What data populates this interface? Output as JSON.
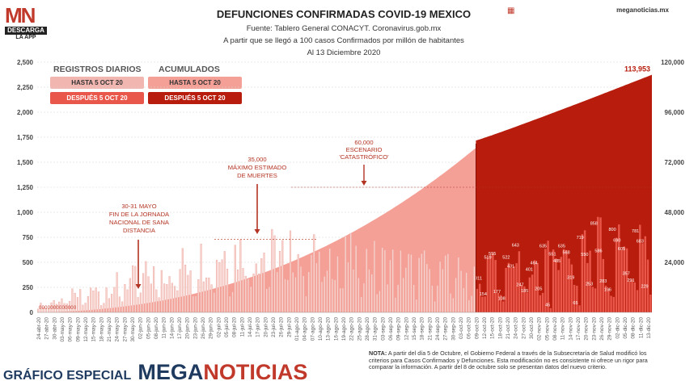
{
  "logo": {
    "mark": "MN",
    "download": "DESCARGA",
    "app": "LA APP"
  },
  "site": "meganoticias.mx",
  "header": {
    "title": "DEFUNCIONES CONFIRMADAS COVID-19 MEXICO",
    "source": "Fuente: Tablero General CONACYT. Coronavirus.gob.mx",
    "subtitle": "A partir que se llegó a 100 casos Confirmados por millón de habitantes",
    "date": "Al 13 Diciembre 2020"
  },
  "legend": {
    "daily_title": "REGISTROS DIARIOS",
    "cum_title": "ACUMULADOS",
    "daily_before": "HASTA 5 OCT 20",
    "daily_after": "DESPUÉS 5 OCT 20",
    "cum_before": "HASTA 5 OCT 20",
    "cum_after": "DESPUÉS 5 OCT 20"
  },
  "colors": {
    "daily_before": "#f2b6b0",
    "daily_after": "#e8574a",
    "cum_before": "#f5a097",
    "cum_after": "#b71c0c",
    "annotation": "#b33322"
  },
  "annotations": [
    {
      "id": "jornada",
      "lines": [
        "30-31 MAYO",
        "FIN DE LA JORNADA",
        "NACIONAL DE SANA",
        "DISTANCIA"
      ]
    },
    {
      "id": "maximo",
      "lines": [
        "35,000",
        "MÁXIMO ESTIMADO",
        "DE MUERTES"
      ]
    },
    {
      "id": "escenario",
      "lines": [
        "60,000",
        "ESCENARIO",
        "'CATASTRÓFICO'"
      ]
    }
  ],
  "note": {
    "label": "NOTA:",
    "text": "A partir del día 5 de Octubre, el Gobierno Federal a través de la Subsecretaría de Salud modificó los criterios para Casos Confirmados y Defunciones. Esta modificación no es consistente ni ofrece un rigor para comparar la información. A partir del 8 de octubre solo se presentan datos del nuevo criterio."
  },
  "footer": {
    "prefix": "GRÁFICO ESPECIAL",
    "brand_a": "MEGA",
    "brand_b": "NOTICIAS"
  },
  "chart_data": {
    "type": "bar",
    "title": "DEFUNCIONES CONFIRMADAS COVID-19 MEXICO",
    "y_left": {
      "ticks": [
        "0",
        "250",
        "500",
        "750",
        "1,000",
        "1,250",
        "1,500",
        "1,750",
        "2,000",
        "2,250",
        "2,500"
      ],
      "range": [
        0,
        2500
      ]
    },
    "y_right": {
      "ticks": [
        "24,000",
        "48,000",
        "72,000",
        "96,000",
        "120,000"
      ],
      "range": [
        0,
        120000
      ]
    },
    "x_labels": [
      "24-abr-20",
      "27-abr-20",
      "30-abr-20",
      "03-may-20",
      "06-may-20",
      "09-may-20",
      "12-may-20",
      "15-may-20",
      "18-may-20",
      "21-may-20",
      "24-may-20",
      "27-may-20",
      "30-may-20",
      "02-jun-20",
      "05-jun-20",
      "08-jun-20",
      "11-jun-20",
      "14-jun-20",
      "17-jun-20",
      "20-jun-20",
      "23-jun-20",
      "26-jun-20",
      "29-jun-20",
      "02-jul-20",
      "05-jul-20",
      "08-jul-20",
      "11-jul-20",
      "14-jul-20",
      "17-jul-20",
      "20-jul-20",
      "23-jul-20",
      "26-jul-20",
      "29-jul-20",
      "01-ago-20",
      "04-ago-20",
      "07-ago-20",
      "10-ago-20",
      "13-ago-20",
      "16-ago-20",
      "19-ago-20",
      "22-ago-20",
      "25-ago-20",
      "28-ago-20",
      "31-ago-20",
      "03-sep-20",
      "06-sep-20",
      "09-sep-20",
      "12-sep-20",
      "15-sep-20",
      "18-sep-20",
      "21-sep-20",
      "24-sep-20",
      "27-sep-20",
      "30-sep-20",
      "03-oct-20",
      "06-oct-20",
      "09-oct-20",
      "12-oct-20",
      "15-oct-20",
      "18-oct-20",
      "21-oct-20",
      "24-oct-20",
      "27-oct-20",
      "30-oct-20",
      "02-nov-20",
      "05-nov-20",
      "08-nov-20",
      "11-nov-20",
      "14-nov-20",
      "17-nov-20",
      "20-nov-20",
      "23-nov-20",
      "26-nov-20",
      "29-nov-20",
      "02-dic-20",
      "05-dic-20",
      "08-dic-20",
      "11-dic-20",
      "13-dic-20"
    ],
    "cumulative_final": 113953,
    "cumulative_final_label": "113,953",
    "cumulative_at_break": 78900,
    "daily_after_labels": [
      {
        "date": "08-oct-20",
        "value": 311
      },
      {
        "date": "09-oct-20",
        "value": 154
      },
      {
        "date": "12-oct-20",
        "value": 519
      },
      {
        "date": "15-oct-20",
        "value": 555
      },
      {
        "date": "15-oct-20",
        "value": 177
      },
      {
        "date": "16-oct-20",
        "value": 108
      },
      {
        "date": "18-oct-20",
        "value": 522
      },
      {
        "date": "19-oct-20",
        "value": 431
      },
      {
        "date": "21-oct-20",
        "value": 643
      },
      {
        "date": "21-oct-20",
        "value": 247
      },
      {
        "date": "22-oct-20",
        "value": 185
      },
      {
        "date": "25-oct-20",
        "value": 401
      },
      {
        "date": "28-oct-20",
        "value": 464
      },
      {
        "date": "29-oct-20",
        "value": 205
      },
      {
        "date": "30-oct-20",
        "value": 635
      },
      {
        "date": "31-oct-20",
        "value": 45
      },
      {
        "date": "01-nov-20",
        "value": 551
      },
      {
        "date": "02-nov-20",
        "value": 485
      },
      {
        "date": "06-nov-20",
        "value": 635
      },
      {
        "date": "07-nov-20",
        "value": 568
      },
      {
        "date": "08-nov-20",
        "value": 319
      },
      {
        "date": "10-nov-20",
        "value": 65
      },
      {
        "date": "12-nov-20",
        "value": 719
      },
      {
        "date": "13-nov-20",
        "value": 550
      },
      {
        "date": "15-nov-20",
        "value": 253
      },
      {
        "date": "18-nov-20",
        "value": 858
      },
      {
        "date": "19-nov-20",
        "value": 586
      },
      {
        "date": "20-nov-20",
        "value": 283
      },
      {
        "date": "21-nov-20",
        "value": 196
      },
      {
        "date": "24-nov-20",
        "value": 800
      },
      {
        "date": "25-nov-20",
        "value": 690
      },
      {
        "date": "26-nov-20",
        "value": 605
      },
      {
        "date": "27-nov-20",
        "value": 357
      },
      {
        "date": "29-nov-20",
        "value": 291
      },
      {
        "date": "03-dic-20",
        "value": 781
      },
      {
        "date": "05-dic-20",
        "value": 683
      },
      {
        "date": "08-dic-20",
        "value": 229
      }
    ],
    "daily_first_values": [
      0,
      0,
      0,
      0,
      0,
      0,
      0,
      0,
      0,
      0,
      0,
      0,
      0
    ],
    "grid": true
  }
}
